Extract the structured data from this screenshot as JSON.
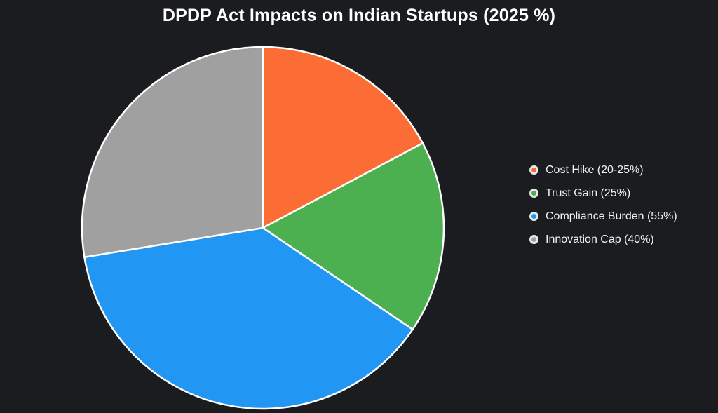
{
  "title": "DPDP Act Impacts on Indian Startups (2025 %)",
  "colors": {
    "background": "#1b1c20",
    "title_text": "#ffffff",
    "legend_text": "#f2f2f2",
    "slice_stroke": "#ffffff",
    "legend_marker_ring": "#e9e9e9"
  },
  "chart_data": {
    "type": "pie",
    "title": "DPDP Act Impacts on Indian Startups (2025 %)",
    "start_angle_deg": 0,
    "direction": "clockwise",
    "legend_position": "right",
    "grid": false,
    "slices": [
      {
        "label": "Cost Hike (20-25%)",
        "value": 25,
        "pct_of_circle": 17.2,
        "color": "#fb6d35"
      },
      {
        "label": "Trust Gain (25%)",
        "value": 25,
        "pct_of_circle": 17.2,
        "color": "#4caf50"
      },
      {
        "label": "Compliance Burden (55%)",
        "value": 55,
        "pct_of_circle": 37.9,
        "color": "#2196f3"
      },
      {
        "label": "Innovation Cap (40%)",
        "value": 40,
        "pct_of_circle": 27.6,
        "color": "#a0a0a0"
      }
    ]
  }
}
